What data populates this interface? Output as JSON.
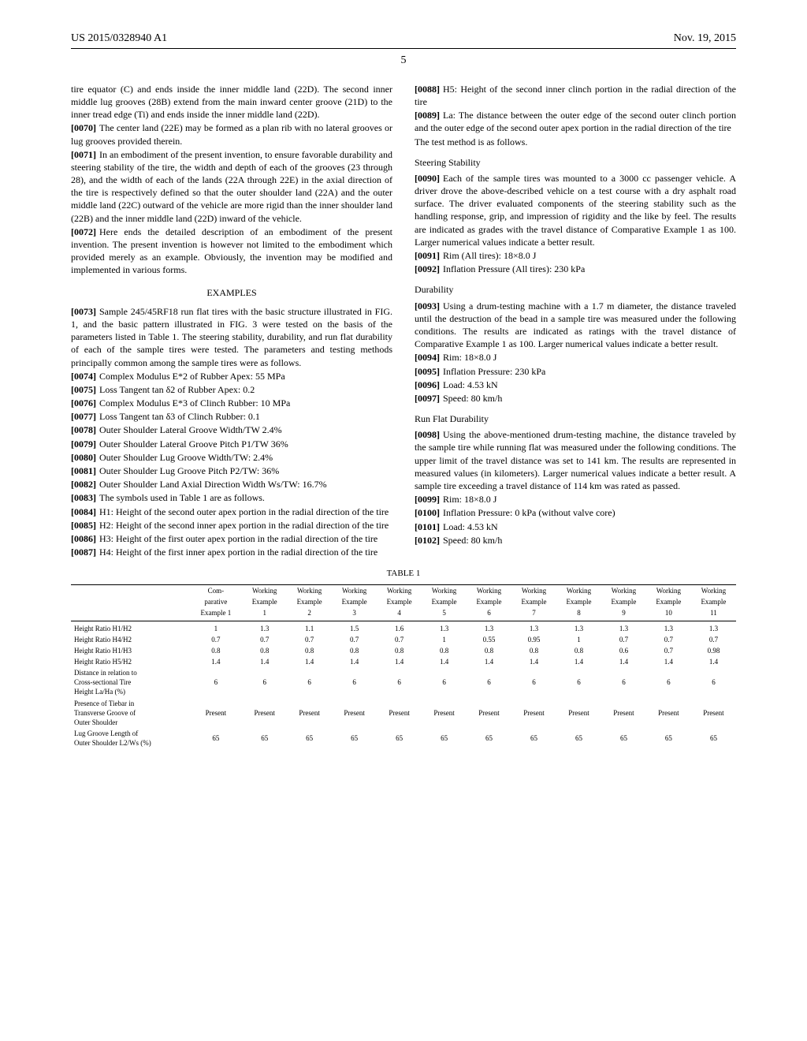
{
  "header": {
    "pub": "US 2015/0328940 A1",
    "date": "Nov. 19, 2015",
    "page": "5"
  },
  "left": {
    "p1": "tire equator (C) and ends inside the inner middle land (22D). The second inner middle lug grooves (28B) extend from the main inward center groove (21D) to the inner tread edge (Ti) and ends inside the inner middle land (22D).",
    "p2_ref": "[0070]",
    "p2": "The center land (22E) may be formed as a plan rib with no lateral grooves or lug grooves provided therein.",
    "p3_ref": "[0071]",
    "p3": "In an embodiment of the present invention, to ensure favorable durability and steering stability of the tire, the width and depth of each of the grooves (23 through 28), and the width of each of the lands (22A through 22E) in the axial direction of the tire is respectively defined so that the outer shoulder land (22A) and the outer middle land (22C) outward of the vehicle are more rigid than the inner shoulder land (22B) and the inner middle land (22D) inward of the vehicle.",
    "p4_ref": "[0072]",
    "p4": "Here ends the detailed description of an embodiment of the present invention. The present invention is however not limited to the embodiment which provided merely as an example. Obviously, the invention may be modified and implemented in various forms.",
    "examples_title": "EXAMPLES",
    "p5_ref": "[0073]",
    "p5": "Sample 245/45RF18 run flat tires with the basic structure illustrated in FIG. 1, and the basic pattern illustrated in FIG. 3 were tested on the basis of the parameters listed in Table 1. The steering stability, durability, and run flat durability of each of the sample tires were tested. The parameters and testing methods principally common among the sample tires were as follows.",
    "l74_ref": "[0074]",
    "l74": "Complex Modulus E*2 of Rubber Apex: 55 MPa",
    "l75_ref": "[0075]",
    "l75": "Loss Tangent tan δ2 of Rubber Apex: 0.2",
    "l76_ref": "[0076]",
    "l76": "Complex Modulus E*3 of Clinch Rubber: 10 MPa",
    "l77_ref": "[0077]",
    "l77": "Loss Tangent tan δ3 of Clinch Rubber: 0.1",
    "l78_ref": "[0078]",
    "l78": "Outer Shoulder Lateral Groove Width/TW 2.4%",
    "l79_ref": "[0079]",
    "l79": "Outer Shoulder Lateral Groove Pitch P1/TW 36%",
    "l80_ref": "[0080]",
    "l80": "Outer Shoulder Lug Groove Width/TW: 2.4%",
    "l81_ref": "[0081]",
    "l81": "Outer Shoulder Lug Groove Pitch P2/TW: 36%",
    "l82_ref": "[0082]",
    "l82": "Outer Shoulder Land Axial Direction Width Ws/TW: 16.7%",
    "l83_ref": "[0083]",
    "l83": "The symbols used in Table 1 are as follows.",
    "l84_ref": "[0084]",
    "l84": "H1: Height of the second outer apex portion in the radial direction of the tire",
    "l85_ref": "[0085]",
    "l85": "H2: Height of the second inner apex portion in the radial direction of the tire",
    "l86_ref": "[0086]",
    "l86": "H3: Height of the first outer apex portion in the radial direction of the tire",
    "l87_ref": "[0087]",
    "l87": "H4: Height of the first inner apex portion in the radial direction of the tire"
  },
  "right": {
    "l88_ref": "[0088]",
    "l88": "H5: Height of the second inner clinch portion in the radial direction of the tire",
    "l89_ref": "[0089]",
    "l89": "La: The distance between the outer edge of the second outer clinch portion and the outer edge of the second outer apex portion in the radial direction of the tire",
    "l89b": "The test method is as follows.",
    "ss_title": "Steering Stability",
    "l90_ref": "[0090]",
    "l90": "Each of the sample tires was mounted to a 3000 cc passenger vehicle. A driver drove the above-described vehicle on a test course with a dry asphalt road surface. The driver evaluated components of the steering stability such as the handling response, grip, and impression of rigidity and the like by feel. The results are indicated as grades with the travel distance of Comparative Example 1 as 100. Larger numerical values indicate a better result.",
    "l91_ref": "[0091]",
    "l91": "Rim (All tires): 18×8.0 J",
    "l92_ref": "[0092]",
    "l92": "Inflation Pressure (All tires): 230 kPa",
    "dur_title": "Durability",
    "l93_ref": "[0093]",
    "l93": "Using a drum-testing machine with a 1.7 m diameter, the distance traveled until the destruction of the bead in a sample tire was measured under the following conditions. The results are indicated as ratings with the travel distance of Comparative Example 1 as 100. Larger numerical values indicate a better result.",
    "l94_ref": "[0094]",
    "l94": "Rim: 18×8.0 J",
    "l95_ref": "[0095]",
    "l95": "Inflation Pressure: 230 kPa",
    "l96_ref": "[0096]",
    "l96": "Load: 4.53 kN",
    "l97_ref": "[0097]",
    "l97": "Speed: 80 km/h",
    "rf_title": "Run Flat Durability",
    "l98_ref": "[0098]",
    "l98": "Using the above-mentioned drum-testing machine, the distance traveled by the sample tire while running flat was measured under the following conditions. The upper limit of the travel distance was set to 141 km. The results are represented in measured values (in kilometers). Larger numerical values indicate a better result. A sample tire exceeding a travel distance of 114 km was rated as passed.",
    "l99_ref": "[0099]",
    "l99": "Rim: 18×8.0 J",
    "l100_ref": "[0100]",
    "l100": "Inflation Pressure: 0 kPa (without valve core)",
    "l101_ref": "[0101]",
    "l101": "Load: 4.53 kN",
    "l102_ref": "[0102]",
    "l102": "Speed: 80 km/h"
  },
  "table": {
    "caption": "TABLE 1",
    "head": {
      "c0": "",
      "c1a": "Com-",
      "c1b": "parative",
      "c1c": "Example 1",
      "w": "Working",
      "ex": "Example",
      "n1": "1",
      "n2": "2",
      "n3": "3",
      "n4": "4",
      "n5": "5",
      "n6": "6",
      "n7": "7",
      "n8": "8",
      "n9": "9",
      "n10": "10",
      "n11": "11"
    },
    "rows": [
      {
        "label": "Height Ratio H1/H2",
        "v": [
          "1",
          "1.3",
          "1.1",
          "1.5",
          "1.6",
          "1.3",
          "1.3",
          "1.3",
          "1.3",
          "1.3",
          "1.3",
          "1.3"
        ]
      },
      {
        "label": "Height Ratio H4/H2",
        "v": [
          "0.7",
          "0.7",
          "0.7",
          "0.7",
          "0.7",
          "1",
          "0.55",
          "0.95",
          "1",
          "0.7",
          "0.7",
          "0.7"
        ]
      },
      {
        "label": "Height Ratio H1/H3",
        "v": [
          "0.8",
          "0.8",
          "0.8",
          "0.8",
          "0.8",
          "0.8",
          "0.8",
          "0.8",
          "0.8",
          "0.6",
          "0.7",
          "0.98"
        ]
      },
      {
        "label": "Height Ratio H5/H2",
        "v": [
          "1.4",
          "1.4",
          "1.4",
          "1.4",
          "1.4",
          "1.4",
          "1.4",
          "1.4",
          "1.4",
          "1.4",
          "1.4",
          "1.4"
        ]
      },
      {
        "label": "Distance in relation to Cross-sectional Tire Height La/Ha (%)",
        "v": [
          "6",
          "6",
          "6",
          "6",
          "6",
          "6",
          "6",
          "6",
          "6",
          "6",
          "6",
          "6"
        ]
      },
      {
        "label": "Presence of Tiebar in Transverse Groove of Outer Shoulder",
        "v": [
          "Present",
          "Present",
          "Present",
          "Present",
          "Present",
          "Present",
          "Present",
          "Present",
          "Present",
          "Present",
          "Present",
          "Present"
        ]
      },
      {
        "label": "Lug Groove Length of Outer Shoulder L2/Ws (%)",
        "v": [
          "65",
          "65",
          "65",
          "65",
          "65",
          "65",
          "65",
          "65",
          "65",
          "65",
          "65",
          "65"
        ]
      }
    ]
  }
}
